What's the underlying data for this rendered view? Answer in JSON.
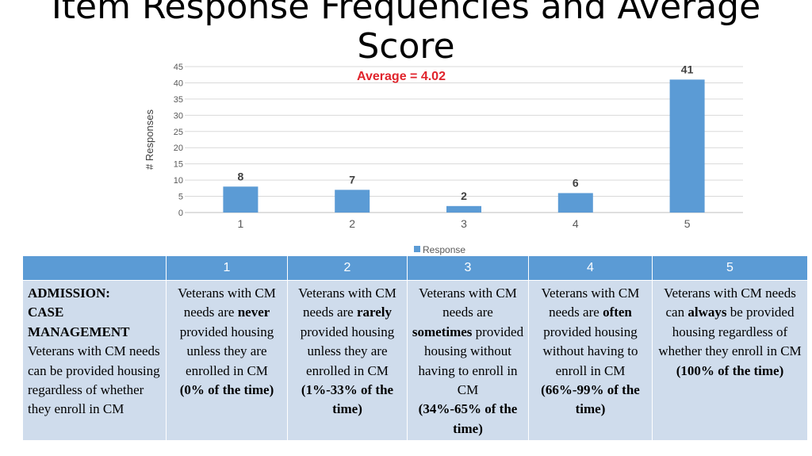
{
  "slide": {
    "title": "Item Response Frequencies and Average Score"
  },
  "chart_data": {
    "type": "bar",
    "categories": [
      "1",
      "2",
      "3",
      "4",
      "5"
    ],
    "values": [
      8,
      7,
      2,
      6,
      41
    ],
    "data_labels": [
      "8",
      "7",
      "2",
      "6",
      "41"
    ],
    "ylabel": "# Responses",
    "ylim": [
      0,
      45
    ],
    "yticks": [
      0,
      5,
      10,
      15,
      20,
      25,
      30,
      35,
      40,
      45
    ],
    "annotation": "Average = 4.02",
    "legend": {
      "label": "Response",
      "placement": "bottom"
    },
    "grid": true,
    "bar_color": "#5b9bd5",
    "annotation_color": "#e0232b"
  },
  "table": {
    "headers": [
      "",
      "1",
      "2",
      "3",
      "4",
      "5"
    ],
    "row_head": {
      "line1": "ADMISSION:",
      "line2": "CASE MANAGEMENT",
      "body": "Veterans with CM needs can be provided housing regardless of whether they enroll in CM"
    },
    "cells": [
      {
        "pre": "Veterans with CM needs are ",
        "bold": "never",
        "post": " provided housing unless they are enrolled in CM",
        "pct": "(0% of the time)"
      },
      {
        "pre": "Veterans with CM needs are ",
        "bold": "rarely",
        "post": " provided housing unless they are enrolled in CM",
        "pct": "(1%-33% of the time)"
      },
      {
        "pre": "Veterans with CM needs are ",
        "bold": "sometimes",
        "post": " provided housing without having to enroll in CM",
        "pct": "(34%-65% of the time)"
      },
      {
        "pre": "Veterans with CM needs are ",
        "bold": "often",
        "post": " provided housing without having to enroll in CM",
        "pct": "(66%-99% of the time)"
      },
      {
        "pre": "Veterans with CM needs can ",
        "bold": "always",
        "post": " be provided housing regardless of whether they enroll in CM",
        "pct": "(100% of the time)"
      }
    ]
  }
}
